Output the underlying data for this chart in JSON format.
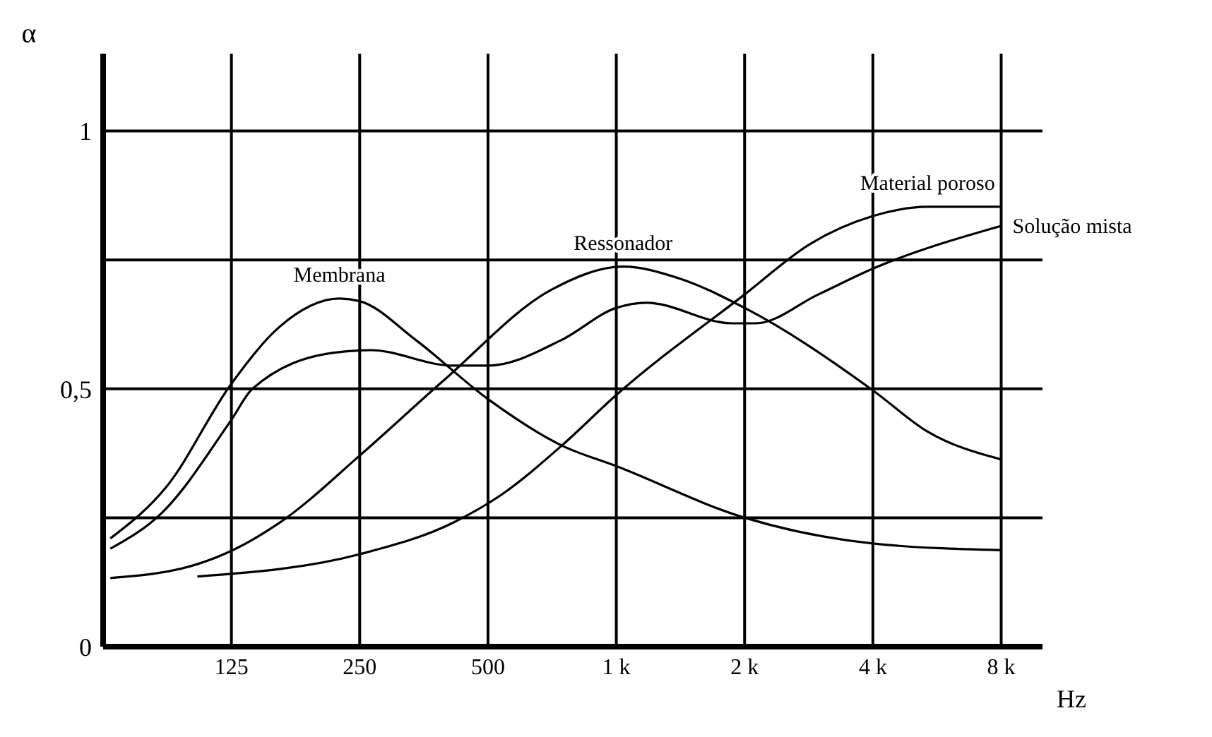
{
  "chart_data": {
    "type": "line",
    "xlabel": "Hz",
    "ylabel": "α",
    "xlim": [
      62.5,
      10000
    ],
    "ylim": [
      0,
      1.15
    ],
    "log": "x",
    "grid": true,
    "xticks": [
      125,
      250,
      500,
      {
        "value": 1000,
        "label": "1 k"
      },
      {
        "value": 2000,
        "label": "2 k"
      },
      {
        "value": 4000,
        "label": "4 k"
      },
      {
        "value": 8000,
        "label": "8 k"
      }
    ],
    "yticks": [
      0,
      {
        "value": 0.25,
        "label": null
      },
      {
        "value": 0.5,
        "label": "0,5"
      },
      {
        "value": 0.75,
        "label": null
      },
      1
    ],
    "series": [
      {
        "name": "Membrana",
        "color": "#000000",
        "x": [
          65,
          88,
          125,
          162,
          224,
          250,
          338,
          500,
          745,
          1000,
          2000,
          4000,
          8000
        ],
        "values": [
          0.21,
          0.31,
          0.51,
          0.62,
          0.675,
          0.67,
          0.595,
          0.48,
          0.39,
          0.35,
          0.25,
          0.2,
          0.187
        ]
      },
      {
        "name": "Ressonador",
        "color": "#000000",
        "x": [
          65,
          104,
          128,
          162,
          252,
          392,
          707,
          1038,
          1394,
          2000,
          4000,
          5375,
          8000
        ],
        "values": [
          0.133,
          0.16,
          0.19,
          0.24,
          0.373,
          0.515,
          0.693,
          0.737,
          0.715,
          0.657,
          0.497,
          0.417,
          0.363
        ]
      },
      {
        "name": "Material poroso",
        "color": "#000000",
        "x": [
          104,
          252,
          413,
          534,
          745,
          1000,
          2000,
          2850,
          4000,
          5375,
          8000
        ],
        "values": [
          0.136,
          0.18,
          0.24,
          0.293,
          0.39,
          0.488,
          0.683,
          0.781,
          0.835,
          0.853,
          0.853
        ]
      },
      {
        "name": "Solução mista",
        "color": "#000000",
        "x": [
          65,
          86,
          125,
          140,
          217,
          265,
          413,
          500,
          745,
          1000,
          1176,
          1871,
          2121,
          2978,
          4000,
          8000
        ],
        "values": [
          0.19,
          0.26,
          0.44,
          0.5,
          0.57,
          0.575,
          0.545,
          0.545,
          0.595,
          0.657,
          0.667,
          0.627,
          0.627,
          0.683,
          0.733,
          0.816
        ]
      }
    ]
  }
}
